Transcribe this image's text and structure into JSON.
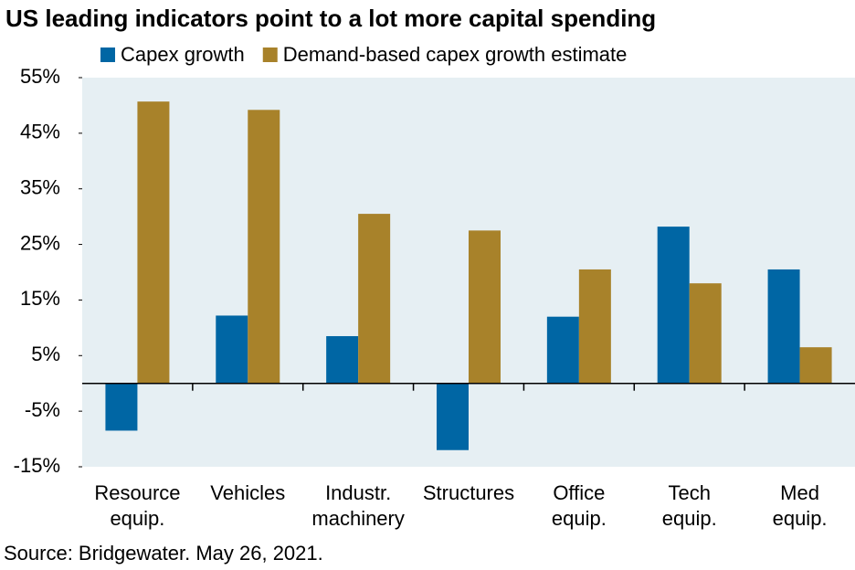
{
  "chart_data": {
    "type": "bar",
    "title": "US leading indicators point to a lot more capital spending",
    "source": "Source: Bridgewater. May 26, 2021.",
    "categories": [
      "Resource\nequip.",
      "Vehicles",
      "Industr.\nmachinery",
      "Structures",
      "Office\nequip.",
      "Tech\nequip.",
      "Med\nequip."
    ],
    "series": [
      {
        "name": "Capex growth",
        "color": "#0066a4",
        "values": [
          -8.5,
          12.2,
          8.5,
          -12,
          12,
          28.2,
          20.5
        ]
      },
      {
        "name": "Demand-based capex growth estimate",
        "color": "#a8822a",
        "values": [
          50.7,
          49.2,
          30.5,
          27.5,
          20.5,
          18,
          6.5
        ]
      }
    ],
    "ylim": [
      -15,
      55
    ],
    "yticks": [
      {
        "value": -15,
        "label": "-15%"
      },
      {
        "value": -5,
        "label": "-5%"
      },
      {
        "value": 5,
        "label": "5%"
      },
      {
        "value": 15,
        "label": "15%"
      },
      {
        "value": 25,
        "label": "25%"
      },
      {
        "value": 35,
        "label": "35%"
      },
      {
        "value": 45,
        "label": "45%"
      },
      {
        "value": 55,
        "label": "55%"
      }
    ],
    "background": "#e6eff3"
  }
}
